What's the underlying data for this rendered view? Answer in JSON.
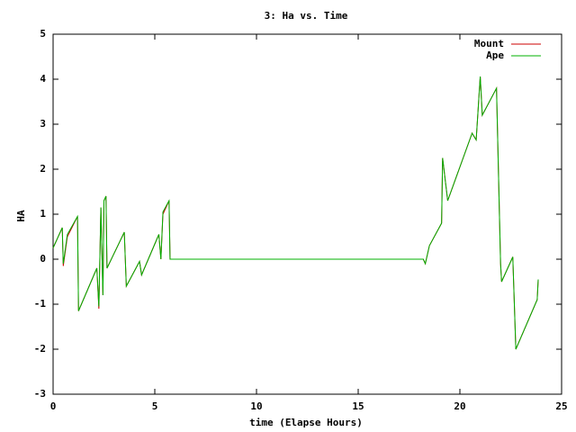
{
  "chart_data": {
    "type": "line",
    "title": "3: Ha vs. Time",
    "x_label": "time (Elapse Hours)",
    "y_label": "HA",
    "x": [
      0,
      0.45,
      0.5,
      0.7,
      1.2,
      1.25,
      2.15,
      2.25,
      2.35,
      2.45,
      2.5,
      2.6,
      2.65,
      3.5,
      3.6,
      4.25,
      4.35,
      5.2,
      5.3,
      5.4,
      5.7,
      5.75,
      18.2,
      18.3,
      18.5,
      19.1,
      19.15,
      19.4,
      20.6,
      20.8,
      21.0,
      21.1,
      21.8,
      22.0,
      22.05,
      22.6,
      22.75,
      23.8,
      23.85
    ],
    "series": [
      {
        "name": "Mount",
        "color": "#cc0000",
        "values": [
          0.25,
          0.7,
          -0.15,
          0.5,
          0.95,
          -1.15,
          -0.2,
          -1.1,
          1.15,
          -0.8,
          1.3,
          1.4,
          -0.2,
          0.6,
          -0.6,
          -0.05,
          -0.35,
          0.55,
          0.0,
          1.0,
          1.3,
          0,
          0,
          -0.1,
          0.3,
          0.8,
          2.25,
          1.3,
          2.8,
          2.65,
          4.06,
          3.2,
          3.8,
          -0.1,
          -0.5,
          0.05,
          -2.0,
          -0.9,
          -0.45
        ]
      },
      {
        "name": "Ape",
        "color": "#00b000",
        "values": [
          0.25,
          0.7,
          -0.1,
          0.55,
          0.95,
          -1.15,
          -0.2,
          -1.05,
          1.15,
          -0.8,
          1.3,
          1.4,
          -0.2,
          0.6,
          -0.6,
          -0.05,
          -0.35,
          0.55,
          0.0,
          1.05,
          1.3,
          0,
          0,
          -0.1,
          0.3,
          0.8,
          2.25,
          1.3,
          2.8,
          2.65,
          4.06,
          3.2,
          3.8,
          -0.1,
          -0.5,
          0.05,
          -2.0,
          -0.9,
          -0.45
        ]
      }
    ],
    "xlim": [
      0,
      25
    ],
    "xticks": [
      0,
      5,
      10,
      15,
      20,
      25
    ],
    "ylim": [
      -3,
      5
    ],
    "yticks": [
      -3,
      -2,
      -1,
      0,
      1,
      2,
      3,
      4,
      5
    ],
    "legend": "top-right"
  }
}
